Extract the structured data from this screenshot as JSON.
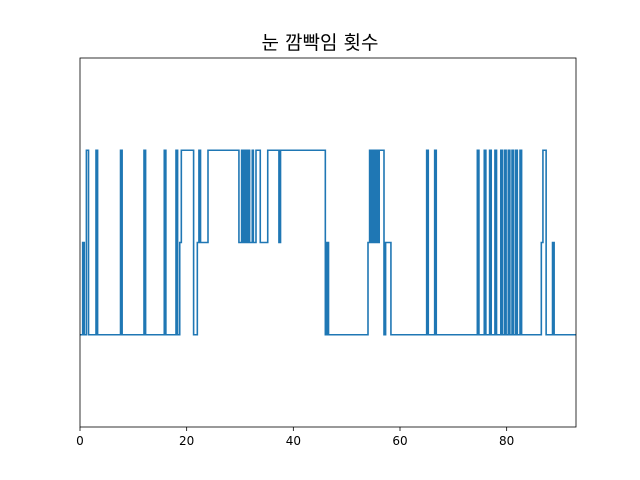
{
  "chart_data": {
    "type": "line",
    "title": "눈 깜빡임 횟수",
    "xlabel": "",
    "ylabel": "",
    "xlim": [
      0,
      93
    ],
    "ylim": [
      -1,
      3
    ],
    "x_ticks": [
      0,
      20,
      40,
      60,
      80
    ],
    "y_ticks_visible": false,
    "grid": false,
    "drawstyle": "steps",
    "series": [
      {
        "color": "#1f77b4",
        "points": [
          [
            0.0,
            0
          ],
          [
            0.5,
            1
          ],
          [
            0.8,
            0
          ],
          [
            1.2,
            2
          ],
          [
            1.6,
            0
          ],
          [
            3.0,
            2
          ],
          [
            3.3,
            0
          ],
          [
            7.6,
            2
          ],
          [
            7.9,
            0
          ],
          [
            12.0,
            2
          ],
          [
            12.3,
            0
          ],
          [
            15.8,
            2
          ],
          [
            16.1,
            0
          ],
          [
            18.0,
            2
          ],
          [
            18.3,
            0
          ],
          [
            18.7,
            1
          ],
          [
            19.0,
            2
          ],
          [
            21.3,
            0
          ],
          [
            22.0,
            1
          ],
          [
            22.3,
            2
          ],
          [
            22.6,
            1
          ],
          [
            24.0,
            2
          ],
          [
            29.8,
            1
          ],
          [
            30.3,
            2
          ],
          [
            30.6,
            1
          ],
          [
            30.9,
            2
          ],
          [
            31.2,
            1
          ],
          [
            31.5,
            2
          ],
          [
            31.8,
            1
          ],
          [
            32.3,
            2
          ],
          [
            32.5,
            1
          ],
          [
            33.0,
            2
          ],
          [
            33.8,
            1
          ],
          [
            35.2,
            2
          ],
          [
            37.3,
            1
          ],
          [
            37.6,
            2
          ],
          [
            46.0,
            0
          ],
          [
            46.3,
            1
          ],
          [
            46.6,
            0
          ],
          [
            54.0,
            1
          ],
          [
            54.3,
            2
          ],
          [
            54.6,
            1
          ],
          [
            54.9,
            2
          ],
          [
            55.2,
            1
          ],
          [
            55.5,
            2
          ],
          [
            55.8,
            1
          ],
          [
            56.1,
            2
          ],
          [
            57.0,
            0
          ],
          [
            57.3,
            1
          ],
          [
            58.3,
            0
          ],
          [
            65.0,
            2
          ],
          [
            65.3,
            0
          ],
          [
            66.5,
            2
          ],
          [
            66.8,
            0
          ],
          [
            74.5,
            2
          ],
          [
            74.8,
            0
          ],
          [
            75.8,
            2
          ],
          [
            76.1,
            0
          ],
          [
            76.8,
            2
          ],
          [
            77.1,
            0
          ],
          [
            77.8,
            2
          ],
          [
            78.1,
            0
          ],
          [
            78.9,
            2
          ],
          [
            79.2,
            0
          ],
          [
            79.6,
            2
          ],
          [
            79.9,
            0
          ],
          [
            80.3,
            2
          ],
          [
            80.6,
            0
          ],
          [
            81.0,
            2
          ],
          [
            81.3,
            0
          ],
          [
            81.7,
            2
          ],
          [
            82.0,
            0
          ],
          [
            82.5,
            2
          ],
          [
            82.8,
            0
          ],
          [
            86.5,
            1
          ],
          [
            86.8,
            2
          ],
          [
            87.4,
            0
          ],
          [
            88.6,
            1
          ],
          [
            88.9,
            0
          ],
          [
            93.0,
            0
          ]
        ]
      }
    ]
  }
}
